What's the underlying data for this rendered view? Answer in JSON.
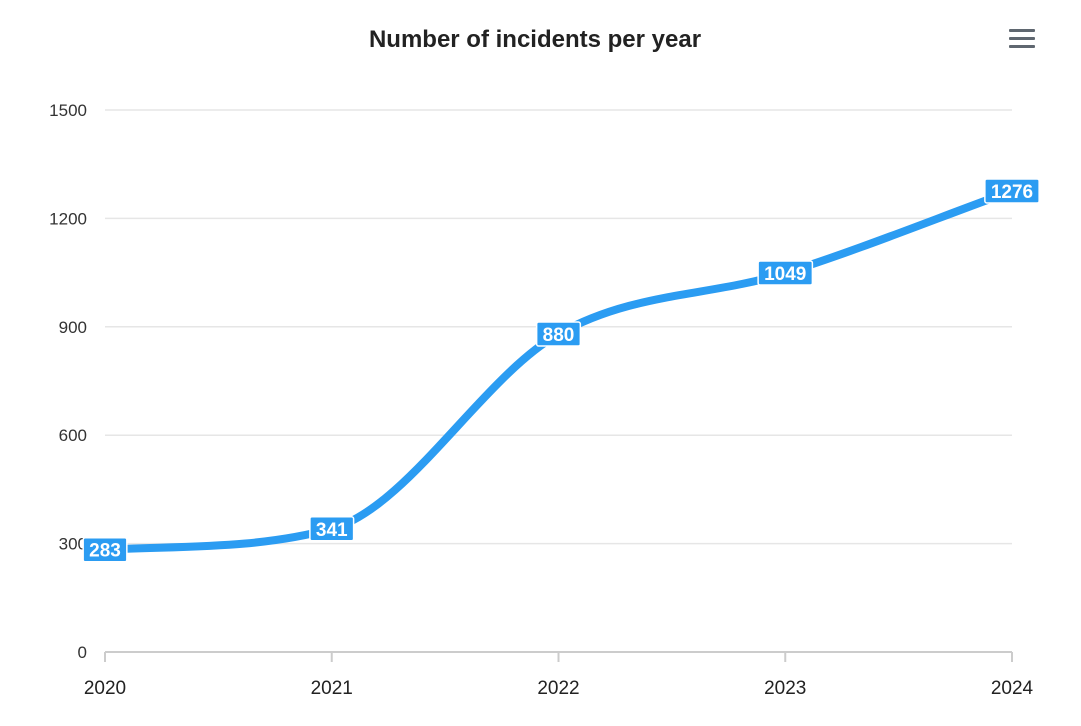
{
  "chart_data": {
    "type": "line",
    "title": "Number of incidents per year",
    "categories": [
      "2020",
      "2021",
      "2022",
      "2023",
      "2024"
    ],
    "series": [
      {
        "values": [
          283,
          341,
          880,
          1049,
          1276
        ]
      }
    ],
    "ylim": [
      0,
      1500
    ],
    "yticks": [
      "0",
      "300",
      "600",
      "900",
      "1200",
      "1500"
    ],
    "grid": true,
    "smooth": true,
    "data_labels": true,
    "colors": {
      "line": "#2b9cf2",
      "label_bg": "#2b9cf2",
      "grid": "#e6e6e6",
      "axis": "#cccccc"
    }
  },
  "toolbar": {
    "menu_icon": "hamburger-menu-icon"
  }
}
